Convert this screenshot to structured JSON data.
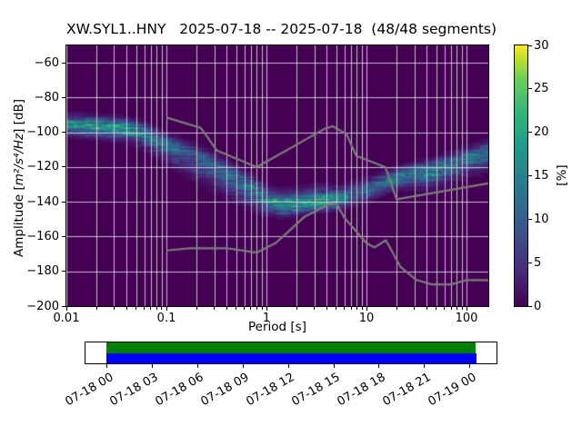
{
  "title": "XW.SYL1..HNY   2025-07-18 -- 2025-07-18  (48/48 segments)",
  "station_id": "XW.SYL1..HNY",
  "date_range": "2025-07-18 -- 2025-07-18",
  "segments_label": "48/48 segments",
  "axes": {
    "xlabel": "Period [s]",
    "ylabel": {
      "prefix": "Amplitude [",
      "math": "m²/s⁴/Hz",
      "suffix": "] [dB]"
    },
    "x_ticks": {
      "labels": [
        "0.01",
        "0.1",
        "1",
        "10",
        "100"
      ],
      "values": [
        0.01,
        0.1,
        1,
        10,
        100
      ]
    },
    "y_ticks": {
      "labels": [
        "−60",
        "−80",
        "−100",
        "−120",
        "−140",
        "−160",
        "−180",
        "−200"
      ],
      "values": [
        -60,
        -80,
        -100,
        -120,
        -140,
        -160,
        -180,
        -200
      ]
    }
  },
  "colorbar": {
    "label": "[%]",
    "tick_labels": [
      "0",
      "5",
      "10",
      "15",
      "20",
      "25",
      "30"
    ],
    "tick_values": [
      0,
      5,
      10,
      15,
      20,
      25,
      30
    ],
    "min": 0,
    "max": 30,
    "colormap": "viridis"
  },
  "timeline": {
    "tick_labels": [
      "07-18 00",
      "07-18 03",
      "07-18 06",
      "07-18 09",
      "07-18 12",
      "07-18 15",
      "07-18 18",
      "07-18 21",
      "07-19 00"
    ],
    "data_bar_color": "#008000",
    "segment_bar_color": "#0000ff"
  },
  "chart_data": {
    "type": "heatmap",
    "title": "XW.SYL1..HNY   2025-07-18 -- 2025-07-18  (48/48 segments)",
    "xlabel": "Period [s]",
    "ylabel": "Amplitude [m²/s⁴/Hz] [dB]",
    "xscale": "log",
    "xlim": [
      0.01,
      165
    ],
    "ylim": [
      -200,
      -50
    ],
    "grid": true,
    "background_color": "#440154",
    "colorbar_range": [
      0,
      30
    ],
    "db_bin_width": 1,
    "period_step_decades": 0.0376,
    "ppsd_mode_curve": [
      [
        0.01,
        -95
      ],
      [
        0.02,
        -96
      ],
      [
        0.035,
        -97
      ],
      [
        0.06,
        -100
      ],
      [
        0.1,
        -106.5
      ],
      [
        0.15,
        -110.5
      ],
      [
        0.22,
        -114.5
      ],
      [
        0.35,
        -120.5
      ],
      [
        0.5,
        -126
      ],
      [
        0.75,
        -133
      ],
      [
        1.0,
        -139.5
      ],
      [
        1.4,
        -142.5
      ],
      [
        2.0,
        -141.5
      ],
      [
        3.0,
        -140
      ],
      [
        5.0,
        -139
      ],
      [
        7.0,
        -136
      ],
      [
        10,
        -133
      ],
      [
        15,
        -128.5
      ],
      [
        22,
        -125
      ],
      [
        30,
        -123.5
      ],
      [
        45,
        -122
      ],
      [
        70,
        -118
      ],
      [
        100,
        -115
      ],
      [
        165,
        -111
      ]
    ],
    "spread_below_db": [
      [
        0.01,
        3.5
      ],
      [
        0.05,
        4
      ],
      [
        0.1,
        5.5
      ],
      [
        0.2,
        7.5
      ],
      [
        0.5,
        7.5
      ],
      [
        0.8,
        5.5
      ],
      [
        1.2,
        3.2
      ],
      [
        3,
        2.8
      ],
      [
        6,
        3.2
      ],
      [
        10,
        3.8
      ],
      [
        20,
        3.5
      ],
      [
        40,
        5
      ],
      [
        165,
        5.5
      ]
    ],
    "spread_above_db": [
      [
        0.01,
        3
      ],
      [
        0.05,
        3
      ],
      [
        0.1,
        3
      ],
      [
        0.3,
        3.5
      ],
      [
        0.7,
        4
      ],
      [
        1.2,
        4.5
      ],
      [
        3,
        4.5
      ],
      [
        6,
        3.8
      ],
      [
        10,
        3.5
      ],
      [
        20,
        3
      ],
      [
        50,
        3.3
      ],
      [
        165,
        3.5
      ]
    ],
    "peak_probability_pct": [
      [
        0.01,
        27
      ],
      [
        0.03,
        30
      ],
      [
        0.06,
        25.5
      ],
      [
        0.1,
        18.6
      ],
      [
        0.2,
        16.5
      ],
      [
        0.4,
        17
      ],
      [
        0.7,
        21
      ],
      [
        1.2,
        28.5
      ],
      [
        2,
        30
      ],
      [
        4,
        30
      ],
      [
        6,
        21
      ],
      [
        8,
        16.5
      ],
      [
        12,
        18.6
      ],
      [
        20,
        23.4
      ],
      [
        30,
        24
      ],
      [
        45,
        25.5
      ],
      [
        70,
        21.6
      ],
      [
        100,
        19.8
      ],
      [
        165,
        18
      ]
    ],
    "noise_models": {
      "color": "#7d7d7b",
      "nhnm": [
        [
          0.1,
          -91.5
        ],
        [
          0.22,
          -97.4
        ],
        [
          0.32,
          -110.5
        ],
        [
          0.8,
          -120.0
        ],
        [
          3.8,
          -98.0
        ],
        [
          4.6,
          -96.5
        ],
        [
          6.3,
          -101.0
        ],
        [
          7.9,
          -113.5
        ],
        [
          15.4,
          -120.0
        ],
        [
          20.0,
          -138.5
        ],
        [
          354.8,
          -126.0
        ]
      ],
      "nlnm": [
        [
          0.1,
          -168.0
        ],
        [
          0.17,
          -166.7
        ],
        [
          0.4,
          -166.7
        ],
        [
          0.8,
          -169.2
        ],
        [
          1.24,
          -163.7
        ],
        [
          2.4,
          -148.6
        ],
        [
          4.3,
          -141.1
        ],
        [
          5.0,
          -141.1
        ],
        [
          6.0,
          -149.0
        ],
        [
          10.0,
          -163.8
        ],
        [
          12.0,
          -166.2
        ],
        [
          15.6,
          -162.1
        ],
        [
          21.9,
          -177.5
        ],
        [
          31.6,
          -185.0
        ],
        [
          45.0,
          -187.5
        ],
        [
          70.0,
          -187.5
        ],
        [
          101.0,
          -185.0
        ],
        [
          154.0,
          -185.0
        ],
        [
          328.0,
          -187.5
        ]
      ]
    },
    "viridis_stops": [
      [
        0.0,
        "#440154"
      ],
      [
        0.125,
        "#482878"
      ],
      [
        0.25,
        "#3e4a89"
      ],
      [
        0.375,
        "#31688e"
      ],
      [
        0.5,
        "#26828e"
      ],
      [
        0.625,
        "#1f9e89"
      ],
      [
        0.75,
        "#35b779"
      ],
      [
        0.875,
        "#6ece58"
      ],
      [
        0.94,
        "#b5de2b"
      ],
      [
        1.0,
        "#fde725"
      ]
    ],
    "coverage": {
      "data_span": [
        "07-18 00:00",
        "07-19 00:00"
      ],
      "bar_colors": [
        "#008000",
        "#0000ff"
      ]
    }
  }
}
